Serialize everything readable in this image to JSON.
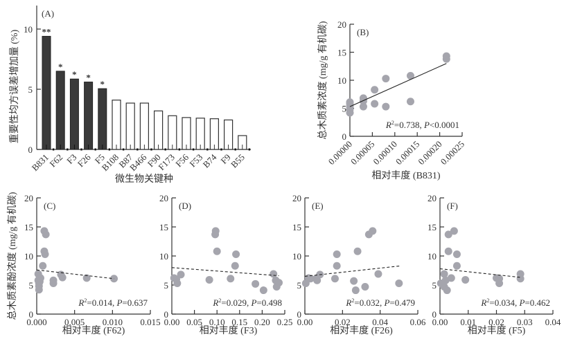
{
  "chart_data": [
    {
      "id": "A",
      "type": "bar",
      "panel_label": "(A)",
      "title": "",
      "xlabel": "微生物关键种",
      "ylabel": "重要性均方误差增加量 (%)",
      "ylim": [
        0,
        12
      ],
      "yticks": [
        0,
        5,
        10
      ],
      "categories": [
        "B831",
        "F62",
        "F3",
        "F26",
        "F5",
        "B108",
        "B87",
        "B466",
        "F90",
        "F173",
        "F56",
        "F53",
        "B74",
        "F9",
        "B55"
      ],
      "values": [
        9.4,
        6.5,
        5.85,
        5.6,
        5.05,
        4.1,
        3.85,
        3.85,
        3.2,
        2.8,
        2.65,
        2.6,
        2.55,
        2.45,
        1.15
      ],
      "significant": [
        true,
        true,
        true,
        true,
        true,
        false,
        false,
        false,
        false,
        false,
        false,
        false,
        false,
        false,
        false
      ],
      "annotations": [
        "**",
        "*",
        "*",
        "*",
        "*",
        "",
        "",
        "",
        "",
        "",
        "",
        "",
        "",
        "",
        ""
      ],
      "colors": {
        "significant": "#3a3a3a",
        "nonsignificant": "#ffffff"
      }
    },
    {
      "id": "B",
      "type": "scatter",
      "panel_label": "(B)",
      "xlabel": "相对丰度 (B831)",
      "ylabel": "总木质素浓度 (mg/g 有机碳)",
      "xlim": [
        0,
        0.00025
      ],
      "ylim": [
        0,
        20
      ],
      "xticks": [
        "0.00000",
        "0.00005",
        "0.00010",
        "0.00015",
        "0.00020",
        "0.00025"
      ],
      "yticks": [
        0,
        5,
        10,
        15,
        20
      ],
      "points": [
        [
          0,
          4.2
        ],
        [
          0,
          4.8
        ],
        [
          0,
          5.3
        ],
        [
          0,
          5.8
        ],
        [
          0,
          6.1
        ],
        [
          3e-05,
          5.3
        ],
        [
          3e-05,
          6.3
        ],
        [
          3e-05,
          6.8
        ],
        [
          5.5e-05,
          8.3
        ],
        [
          5.5e-05,
          5.8
        ],
        [
          8e-05,
          10.3
        ],
        [
          8e-05,
          5.3
        ],
        [
          0.000135,
          10.8
        ],
        [
          0.000135,
          6.2
        ],
        [
          0.000215,
          14.3
        ],
        [
          0.000215,
          13.8
        ]
      ],
      "fit": {
        "style": "solid",
        "x": [
          0,
          0.000215
        ],
        "y": [
          5.3,
          13.0
        ]
      },
      "stat_r2": "=0.738, ",
      "stat_p": "<0.0001"
    },
    {
      "id": "C",
      "type": "scatter",
      "panel_label": "(C)",
      "xlabel": "相对丰度 (F62)",
      "ylabel": "总木质素酚浓度 (mg/g 有机碳)",
      "xlim": [
        0,
        0.015
      ],
      "ylim": [
        0,
        20
      ],
      "xticks": [
        "0.000",
        "0.005",
        "0.010",
        "0.015"
      ],
      "yticks": [
        0,
        5,
        10,
        15,
        20
      ],
      "points": [
        [
          0.001,
          14.3
        ],
        [
          0.0012,
          13.7
        ],
        [
          0.001,
          10.8
        ],
        [
          0.0011,
          10.3
        ],
        [
          0.0008,
          8.3
        ],
        [
          0.0002,
          6.9
        ],
        [
          0.0002,
          5.8
        ],
        [
          0.0003,
          5.3
        ],
        [
          0.0003,
          4.8
        ],
        [
          0.0003,
          4.2
        ],
        [
          0.0005,
          6.2
        ],
        [
          0.0004,
          5.6
        ],
        [
          0.0022,
          5.8
        ],
        [
          0.0022,
          5.3
        ],
        [
          0.0032,
          6.8
        ],
        [
          0.0034,
          6.3
        ],
        [
          0.0066,
          6.2
        ],
        [
          0.0102,
          6.1
        ]
      ],
      "fit": {
        "style": "dashed",
        "x": [
          0,
          0.0102
        ],
        "y": [
          7.6,
          6.1
        ]
      },
      "stat_r2": "=0.014, ",
      "stat_p": "=0.637"
    },
    {
      "id": "D",
      "type": "scatter",
      "panel_label": "(D)",
      "xlabel": "相对丰度 (F3)",
      "ylabel": "",
      "xlim": [
        0,
        0.25
      ],
      "ylim": [
        0,
        20
      ],
      "xticks": [
        "0.00",
        "0.05",
        "0.10",
        "0.15",
        "0.20",
        "0.25"
      ],
      "yticks": [
        0,
        5,
        10,
        15,
        20
      ],
      "points": [
        [
          0.005,
          6.2
        ],
        [
          0.01,
          6.0
        ],
        [
          0.012,
          5.3
        ],
        [
          0.02,
          6.8
        ],
        [
          0.083,
          5.9
        ],
        [
          0.097,
          14.3
        ],
        [
          0.096,
          13.7
        ],
        [
          0.1,
          10.8
        ],
        [
          0.13,
          6.1
        ],
        [
          0.14,
          8.3
        ],
        [
          0.142,
          10.3
        ],
        [
          0.185,
          5.2
        ],
        [
          0.203,
          4.1
        ],
        [
          0.225,
          6.9
        ],
        [
          0.23,
          5.8
        ],
        [
          0.232,
          4.7
        ],
        [
          0.237,
          5.4
        ]
      ],
      "fit": {
        "style": "dashed",
        "x": [
          0,
          0.237
        ],
        "y": [
          8.0,
          6.6
        ]
      },
      "stat_r2": "=0.029, ",
      "stat_p": "=0.498"
    },
    {
      "id": "E",
      "type": "scatter",
      "panel_label": "(E)",
      "xlabel": "相对丰度 (F26)",
      "ylabel": "",
      "xlim": [
        0,
        0.06
      ],
      "ylim": [
        0,
        20
      ],
      "xticks": [
        "0.00",
        "0.02",
        "0.04",
        "0.06"
      ],
      "yticks": [
        0,
        5,
        10,
        15,
        20
      ],
      "points": [
        [
          0.0005,
          5.3
        ],
        [
          0.002,
          6.2
        ],
        [
          0.003,
          6.1
        ],
        [
          0.006,
          6.1
        ],
        [
          0.0065,
          5.8
        ],
        [
          0.008,
          6.8
        ],
        [
          0.016,
          6.1
        ],
        [
          0.017,
          10.3
        ],
        [
          0.017,
          8.3
        ],
        [
          0.026,
          5.7
        ],
        [
          0.027,
          4.1
        ],
        [
          0.028,
          10.8
        ],
        [
          0.032,
          4.7
        ],
        [
          0.034,
          13.7
        ],
        [
          0.036,
          14.3
        ],
        [
          0.039,
          6.9
        ],
        [
          0.05,
          5.3
        ]
      ],
      "fit": {
        "style": "dashed",
        "x": [
          0,
          0.051
        ],
        "y": [
          6.5,
          8.3
        ]
      },
      "stat_r2": "=0.032, ",
      "stat_p": "=0.479"
    },
    {
      "id": "F",
      "type": "scatter",
      "panel_label": "(F)",
      "xlabel": "相对丰度 (F5)",
      "ylabel": "",
      "xlim": [
        0,
        0.04
      ],
      "ylim": [
        0,
        20
      ],
      "xticks": [
        "0.00",
        "0.01",
        "0.02",
        "0.03",
        "0.04"
      ],
      "yticks": [
        0,
        5,
        10,
        15,
        20
      ],
      "points": [
        [
          0.0003,
          5.3
        ],
        [
          0.001,
          5.0
        ],
        [
          0.0015,
          4.7
        ],
        [
          0.0015,
          6.9
        ],
        [
          0.002,
          5.8
        ],
        [
          0.0025,
          4.1
        ],
        [
          0.003,
          13.7
        ],
        [
          0.003,
          10.8
        ],
        [
          0.004,
          6.2
        ],
        [
          0.005,
          14.3
        ],
        [
          0.006,
          10.3
        ],
        [
          0.006,
          8.3
        ],
        [
          0.009,
          5.9
        ],
        [
          0.02,
          6.2
        ],
        [
          0.021,
          6.1
        ],
        [
          0.021,
          5.3
        ],
        [
          0.0285,
          6.9
        ],
        [
          0.0285,
          6.1
        ]
      ],
      "fit": {
        "style": "dashed",
        "x": [
          0,
          0.029
        ],
        "y": [
          7.8,
          6.3
        ]
      },
      "stat_r2": "=0.034, ",
      "stat_p": "=0.462"
    }
  ],
  "stat_labels": {
    "r": "R",
    "sup": "2",
    "p": "P"
  },
  "colors": {
    "points": "#a5a5ad",
    "axis": "#333333",
    "bar_dark": "#3a3a3a"
  }
}
